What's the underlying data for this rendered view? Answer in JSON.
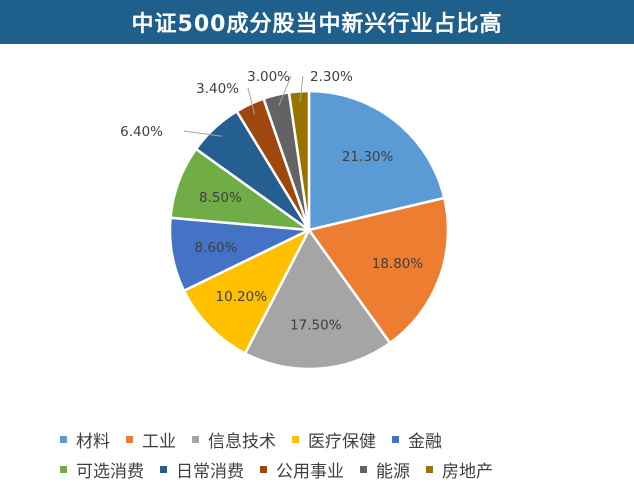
{
  "title": "中证500成分股当中新兴行业占比高",
  "chart_data": {
    "type": "pie",
    "title": "中证500成分股当中新兴行业占比高",
    "slices": [
      {
        "name": "材料",
        "value": 21.3,
        "label": "21.30%",
        "color": "#5b9bd5"
      },
      {
        "name": "工业",
        "value": 18.8,
        "label": "18.80%",
        "color": "#ed7d31"
      },
      {
        "name": "信息技术",
        "value": 17.5,
        "label": "17.50%",
        "color": "#a5a5a5"
      },
      {
        "name": "医疗保健",
        "value": 10.2,
        "label": "10.20%",
        "color": "#ffc000"
      },
      {
        "name": "金融",
        "value": 8.6,
        "label": "8.60%",
        "color": "#4472c4"
      },
      {
        "name": "可选消费",
        "value": 8.5,
        "label": "8.50%",
        "color": "#70ad47"
      },
      {
        "name": "日常消费",
        "value": 6.4,
        "label": "6.40%",
        "color": "#255e91"
      },
      {
        "name": "公用事业",
        "value": 3.4,
        "label": "3.40%",
        "color": "#9e480e"
      },
      {
        "name": "能源",
        "value": 3.0,
        "label": "3.00%",
        "color": "#636363"
      },
      {
        "name": "房地产",
        "value": 2.3,
        "label": "2.30%",
        "color": "#997300"
      }
    ],
    "legend_position": "bottom",
    "legend_rows": [
      [
        "材料",
        "工业",
        "信息技术",
        "医疗保健",
        "金融"
      ],
      [
        "可选消费",
        "日常消费",
        "公用事业",
        "能源",
        "房地产"
      ]
    ]
  }
}
